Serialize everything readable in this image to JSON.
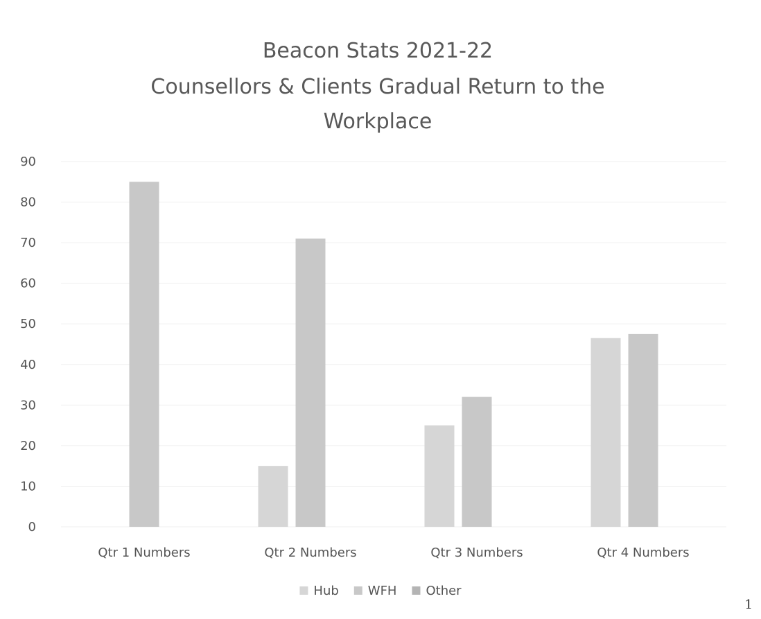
{
  "chart_data": {
    "type": "bar",
    "title": [
      "Beacon Stats 2021-22",
      "Counsellors & Clients Gradual Return to the",
      "Workplace"
    ],
    "categories": [
      "Qtr 1 Numbers",
      "Qtr 2 Numbers",
      "Qtr 3 Numbers",
      "Qtr 4 Numbers"
    ],
    "series": [
      {
        "name": "Hub",
        "color": "#d6d6d6",
        "values": [
          0,
          15,
          25,
          46.5
        ]
      },
      {
        "name": "WFH",
        "color": "#c8c8c8",
        "values": [
          85,
          71,
          32,
          47.5
        ]
      },
      {
        "name": "Other",
        "color": "#b4b4b4",
        "values": [
          0,
          0,
          0,
          0
        ]
      }
    ],
    "yticks": [
      0,
      10,
      20,
      30,
      40,
      50,
      60,
      70,
      80,
      90
    ],
    "ylim": [
      0,
      90
    ],
    "xlabel": "",
    "ylabel": "",
    "grid": true,
    "legend_position": "bottom"
  },
  "page_number": "1"
}
